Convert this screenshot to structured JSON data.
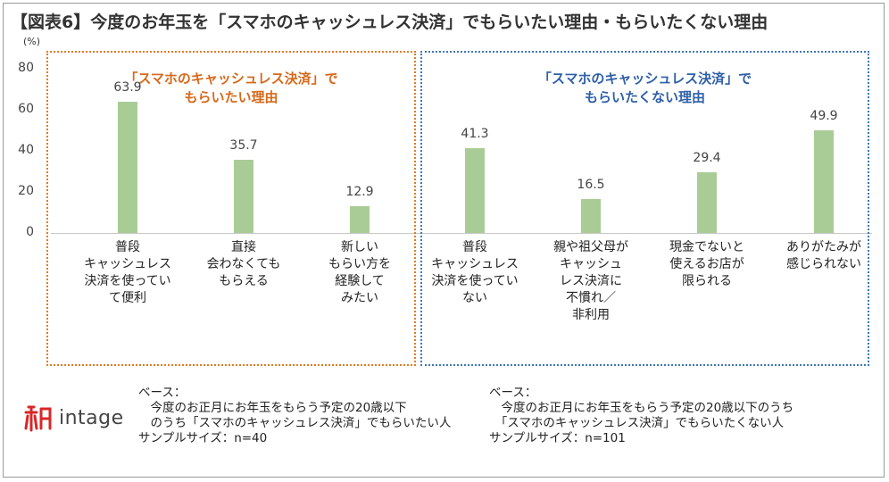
{
  "title": "【図表6】今度のお年玉を「スマホのキャッシュレス決済」でもらいたい理由・もらいたくない理由",
  "colors": {
    "bar": "#a9cc96",
    "left_accent": "#e07b25",
    "right_accent": "#3f77b8"
  },
  "chart_data": {
    "type": "bar",
    "unit_label": "(%)",
    "ylim": [
      0,
      80
    ],
    "yticks": [
      0,
      20,
      40,
      60,
      80
    ],
    "groups": [
      {
        "label": "「スマホのキャッシュレス決済」で\nもらいたい理由",
        "categories": [
          "普段\nキャッシュレス\n決済を使ってい\nて便利",
          "直接\n会わなくても\nもらえる",
          "新しい\nもらい方を\n経験して\nみたい"
        ],
        "values": [
          63.9,
          35.7,
          12.9
        ],
        "value_labels": [
          "63.9",
          "35.7",
          "12.9"
        ]
      },
      {
        "label": "「スマホのキャッシュレス決済」で\nもらいたくない理由",
        "categories": [
          "普段\nキャッシュレス\n決済を使ってい\nない",
          "親や祖父母が\nキャッシュ\nレス決済に\n不慣れ／\n非利用",
          "現金でないと\n使えるお店が\n限られる",
          "ありがたみが\n感じられない"
        ],
        "values": [
          41.3,
          16.5,
          29.4,
          49.9
        ],
        "value_labels": [
          "41.3",
          "16.5",
          "29.4",
          "49.9"
        ]
      }
    ]
  },
  "footer": {
    "logo_text": "intage",
    "left_note": "ベース：\n　今度のお正月にお年玉をもらう予定の20歳以下\n　のうち「スマホのキャッシュレス決済」でもらいたい人\nサンプルサイズ：n=40",
    "right_note": "ベース：\n　今度のお正月にお年玉をもらう予定の20歳以下のうち\n　「スマホのキャッシュレス決済」でもらいたくない人\nサンプルサイズ：n=101"
  }
}
